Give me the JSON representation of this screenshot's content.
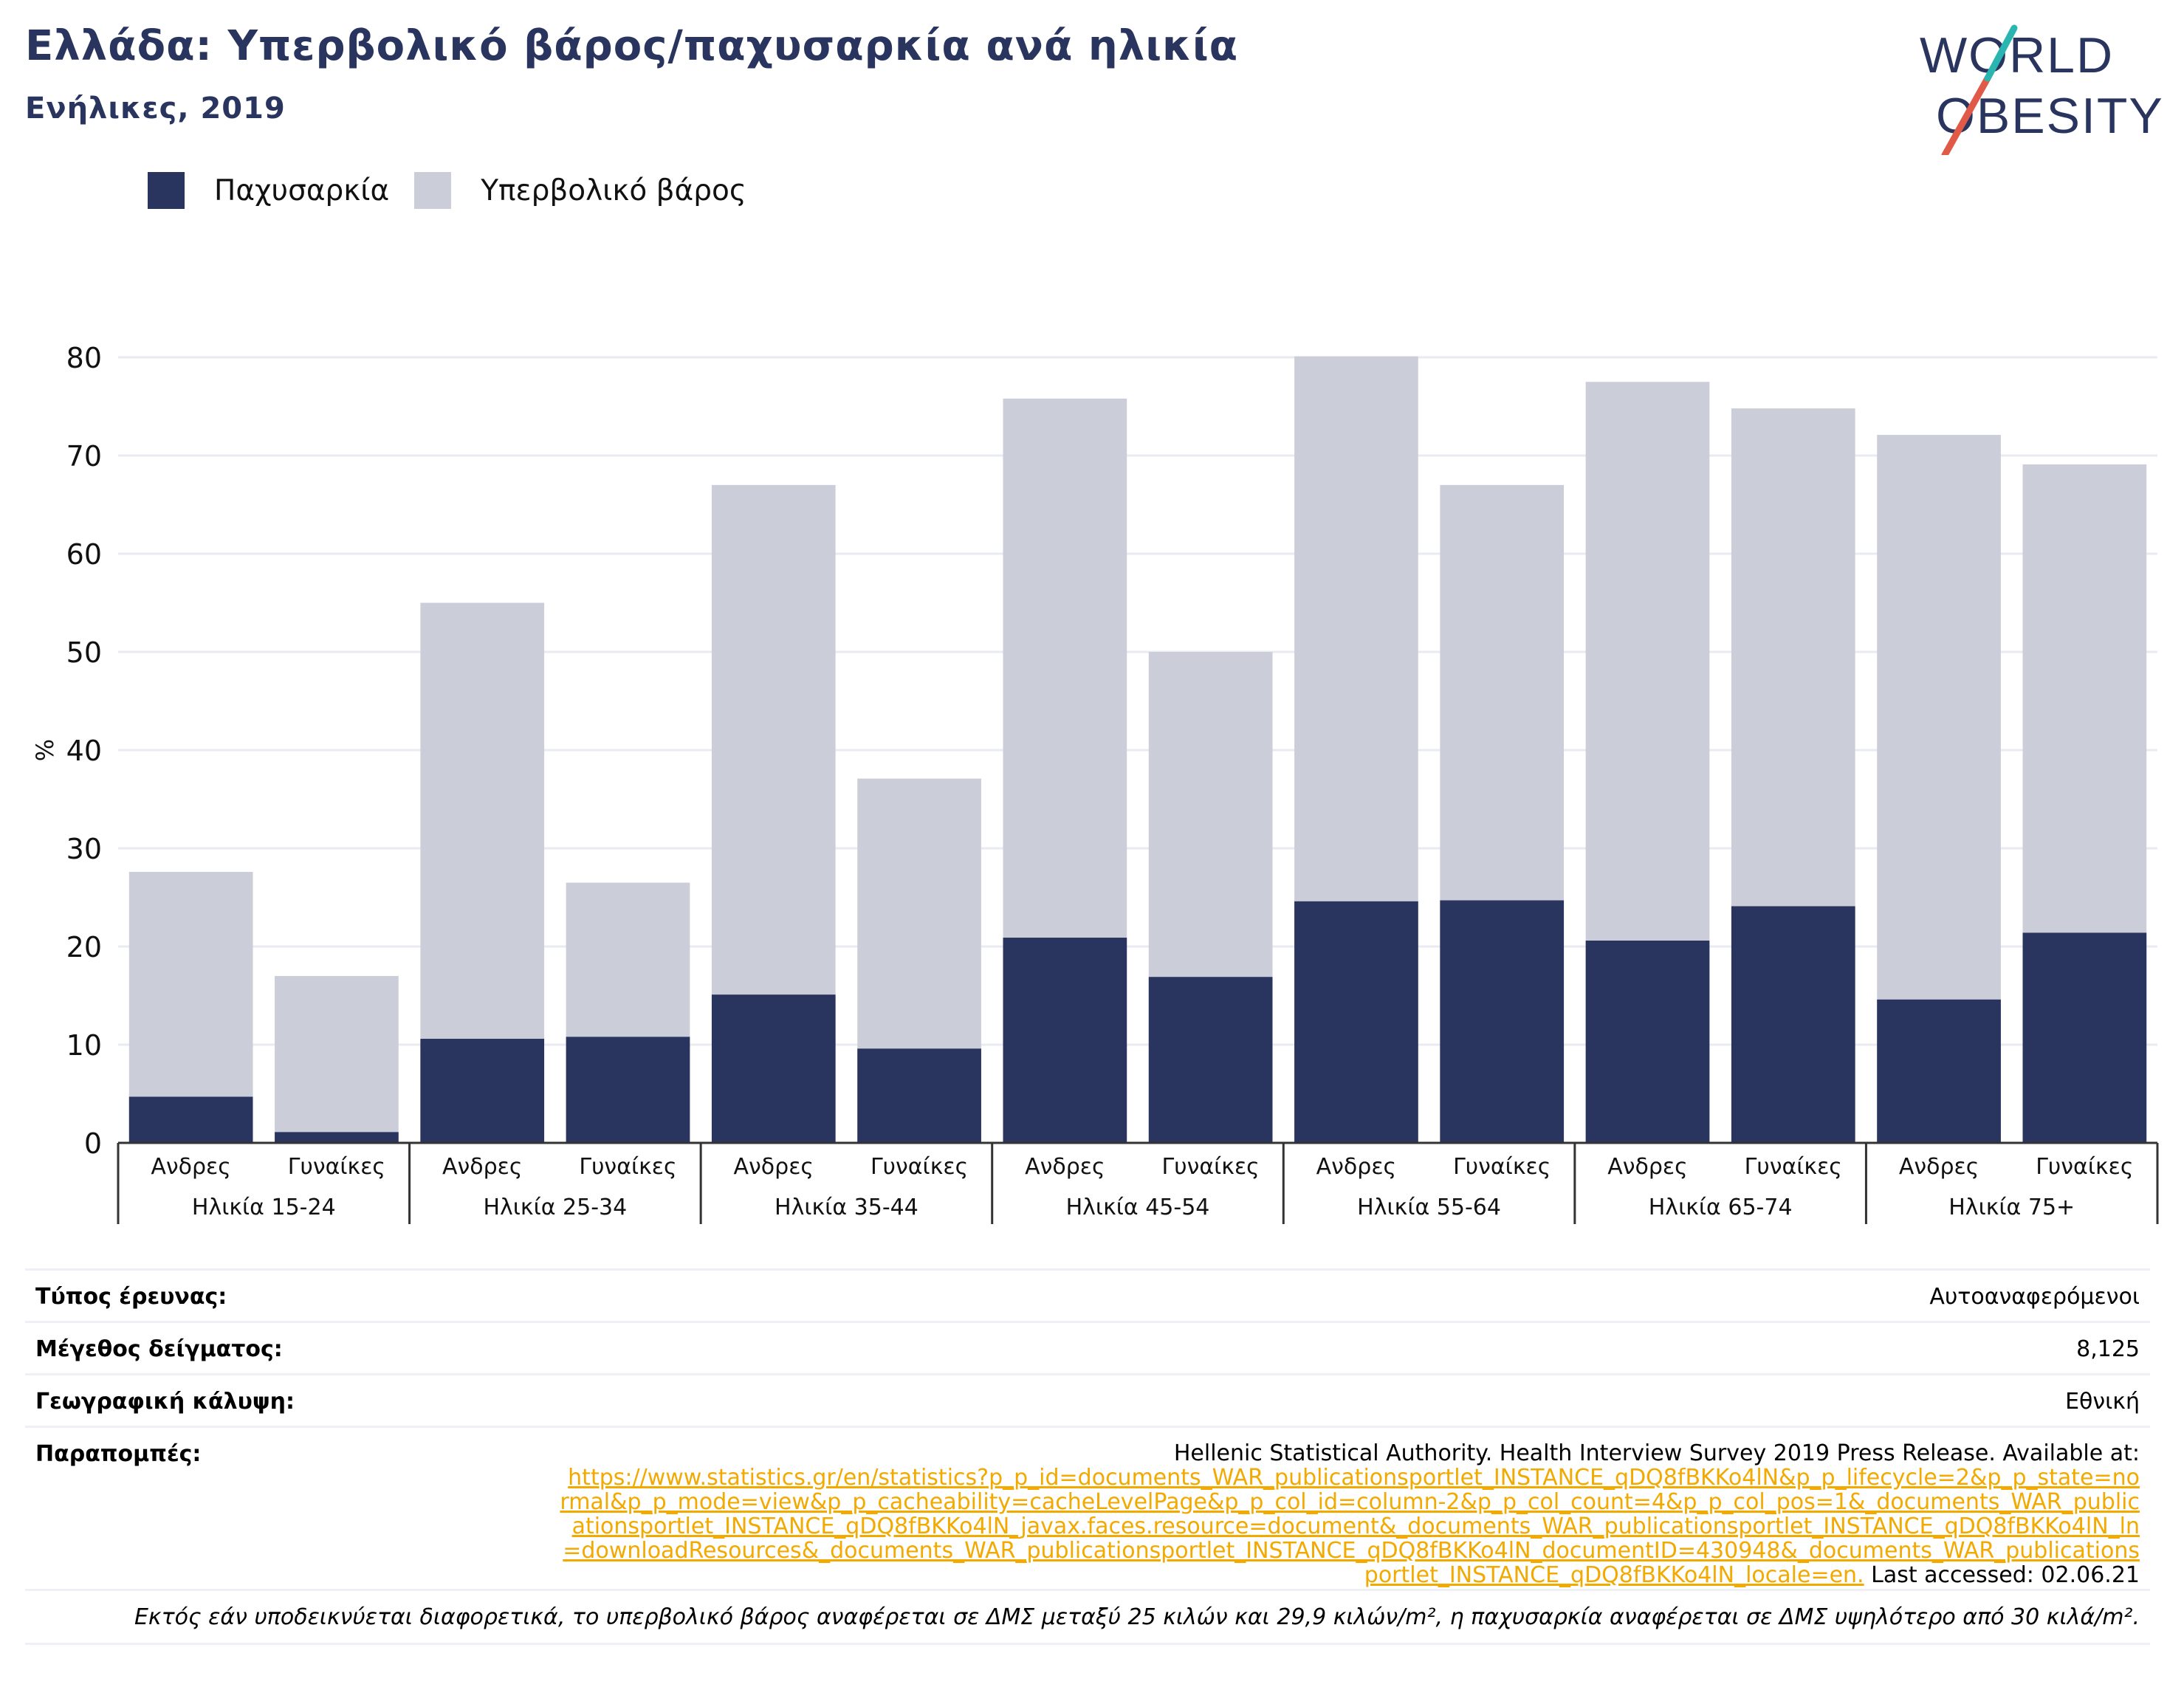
{
  "header": {
    "title": "Ελλάδα: Υπερβολικό βάρος/παχυσαρκία ανά ηλικία",
    "subtitle": "Ενήλικες, 2019"
  },
  "logo": {
    "line1": "WORLD",
    "line2": "OBESITY",
    "colors": {
      "text": "#29355f",
      "slash_red": "#e05a47",
      "slash_teal": "#2bb5b0"
    }
  },
  "legend": [
    {
      "label": "Παχυσαρκία",
      "color": "#29355f"
    },
    {
      "label": "Υπερβολικό βάρος",
      "color": "#cbcdd9"
    }
  ],
  "chart_data": {
    "type": "bar",
    "stacking": "overlay",
    "ylabel": "%",
    "ylim": [
      0,
      80
    ],
    "yticks": [
      0,
      10,
      20,
      30,
      40,
      50,
      60,
      70,
      80
    ],
    "grid": true,
    "legend_position": "top-left",
    "groups": [
      "Ηλικία 15-24",
      "Ηλικία 25-34",
      "Ηλικία 35-44",
      "Ηλικία 45-54",
      "Ηλικία 55-64",
      "Ηλικία 65-74",
      "Ηλικία 75+"
    ],
    "subcategories": [
      "Ανδρες",
      "Γυναίκες"
    ],
    "series": [
      {
        "name": "Υπερβολικό βάρος",
        "color": "#cbcdd9",
        "values": [
          27.6,
          17.0,
          55.0,
          26.5,
          67.0,
          37.1,
          75.8,
          50.0,
          80.1,
          67.0,
          77.5,
          74.8,
          72.1,
          69.1
        ]
      },
      {
        "name": "Παχυσαρκία",
        "color": "#29355f",
        "values": [
          4.7,
          1.1,
          10.6,
          10.8,
          15.1,
          9.6,
          20.9,
          16.9,
          24.6,
          24.7,
          20.6,
          24.1,
          14.6,
          21.4
        ]
      }
    ]
  },
  "meta": {
    "survey_type": {
      "key": "Τύπος έρευνας:",
      "value": "Αυτοαναφερόμενοι"
    },
    "sample_size": {
      "key": "Μέγεθος δείγματος:",
      "value": "8,125"
    },
    "coverage": {
      "key": "Γεωγραφική κάλυψη:",
      "value": "Εθνική"
    },
    "references": {
      "key": "Παραπομπές:",
      "text": "Hellenic Statistical Authority. Health Interview Survey 2019 Press Release. Available at:",
      "link": "https://www.statistics.gr/en/statistics?p_p_id=documents_WAR_publicationsportlet_INSTANCE_qDQ8fBKKo4lN&p_p_lifecycle=2&p_p_state=normal&p_p_mode=view&p_p_cacheability=cacheLevelPage&p_p_col_id=column-2&p_p_col_count=4&p_p_col_pos=1&_documents_WAR_publicationsportlet_INSTANCE_qDQ8fBKKo4lN_javax.faces.resource=document&_documents_WAR_publicationsportlet_INSTANCE_qDQ8fBKKo4lN_ln=downloadResources&_documents_WAR_publicationsportlet_INSTANCE_qDQ8fBKKo4lN_documentID=430948&_documents_WAR_publicationsportlet_INSTANCE_qDQ8fBKKo4lN_locale=en.",
      "accessed": "Last accessed: 02.06.21"
    },
    "footnote": "Εκτός εάν υποδεικνύεται διαφορετικά, το υπερβολικό βάρος αναφέρεται σε ΔΜΣ μεταξύ 25 κιλών και 29,9 κιλών/m², η παχυσαρκία αναφέρεται σε ΔΜΣ υψηλότερο από 30 κιλά/m²."
  }
}
